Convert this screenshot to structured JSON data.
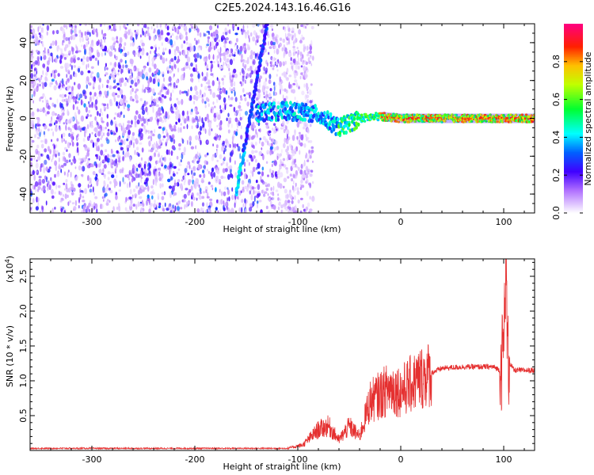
{
  "figure": {
    "title": "C2E5.2024.143.16.46.G16"
  },
  "chart_data": [
    {
      "type": "heatmap",
      "xlabel": "Height of straight line (km)",
      "ylabel": "Frequency (Hz)",
      "xlim": [
        -360,
        130
      ],
      "ylim": [
        -50,
        50
      ],
      "x_ticks": [
        {
          "value": -300,
          "label": "-300"
        },
        {
          "value": -200,
          "label": "-200"
        },
        {
          "value": -100,
          "label": "-100"
        },
        {
          "value": 0,
          "label": "0"
        },
        {
          "value": 100,
          "label": "100"
        }
      ],
      "y_ticks": [
        {
          "value": -40,
          "label": "-40"
        },
        {
          "value": -20,
          "label": "-20"
        },
        {
          "value": 0,
          "label": "0"
        },
        {
          "value": 20,
          "label": "20"
        },
        {
          "value": 40,
          "label": "40"
        }
      ],
      "colorbar": {
        "label": "Normalized spectral amplitude",
        "range": [
          0,
          1
        ],
        "ticks": [
          {
            "value": 0.0,
            "label": "0.0"
          },
          {
            "value": 0.2,
            "label": "0.2"
          },
          {
            "value": 0.4,
            "label": "0.4"
          },
          {
            "value": 0.6,
            "label": "0.6"
          },
          {
            "value": 0.8,
            "label": "0.8"
          }
        ],
        "stops": [
          {
            "value": 0.0,
            "color": "#ffffff"
          },
          {
            "value": 0.12,
            "color": "#b070ff"
          },
          {
            "value": 0.22,
            "color": "#4000ff"
          },
          {
            "value": 0.32,
            "color": "#0060ff"
          },
          {
            "value": 0.42,
            "color": "#00ffff"
          },
          {
            "value": 0.55,
            "color": "#00ff30"
          },
          {
            "value": 0.68,
            "color": "#c0ff00"
          },
          {
            "value": 0.78,
            "color": "#ffc000"
          },
          {
            "value": 0.88,
            "color": "#ff2000"
          },
          {
            "value": 1.0,
            "color": "#ff0080"
          }
        ]
      },
      "features": {
        "noise_region_x": [
          -360,
          -100
        ],
        "linear_ridge": {
          "from": [
            -160,
            -40
          ],
          "to": [
            -130,
            50
          ]
        },
        "carrier_track": [
          {
            "x": -140,
            "y": 3
          },
          {
            "x": -110,
            "y": 4
          },
          {
            "x": -80,
            "y": 2
          },
          {
            "x": -60,
            "y": -5
          },
          {
            "x": -40,
            "y": 0
          },
          {
            "x": -20,
            "y": 1
          },
          {
            "x": 0,
            "y": 0
          },
          {
            "x": 50,
            "y": 0
          },
          {
            "x": 90,
            "y": 0
          },
          {
            "x": 130,
            "y": 0
          }
        ]
      }
    },
    {
      "type": "line",
      "xlabel": "Height of straight line (km)",
      "ylabel": "SNR (10 * v/v)",
      "y_multiplier": "(x10",
      "y_multiplier_exp": "4",
      "y_multiplier_close": ")",
      "xlim": [
        -360,
        130
      ],
      "ylim": [
        0,
        2.75
      ],
      "line_color": "#e53030",
      "x_ticks": [
        {
          "value": -300,
          "label": "-300"
        },
        {
          "value": -200,
          "label": "-200"
        },
        {
          "value": -100,
          "label": "-100"
        },
        {
          "value": 0,
          "label": "0"
        },
        {
          "value": 100,
          "label": "100"
        }
      ],
      "y_ticks": [
        {
          "value": 0.5,
          "label": "0.5"
        },
        {
          "value": 1.0,
          "label": "1.0"
        },
        {
          "value": 1.5,
          "label": "1.5"
        },
        {
          "value": 2.0,
          "label": "2.0"
        },
        {
          "value": 2.5,
          "label": "2.5"
        }
      ],
      "envelope": [
        {
          "x": -360,
          "y": 0.03
        },
        {
          "x": -110,
          "y": 0.03
        },
        {
          "x": -95,
          "y": 0.08
        },
        {
          "x": -80,
          "y": 0.3
        },
        {
          "x": -70,
          "y": 0.35
        },
        {
          "x": -60,
          "y": 0.15
        },
        {
          "x": -50,
          "y": 0.35
        },
        {
          "x": -40,
          "y": 0.2
        },
        {
          "x": -30,
          "y": 0.7
        },
        {
          "x": -20,
          "y": 0.8
        },
        {
          "x": -10,
          "y": 0.9
        },
        {
          "x": 0,
          "y": 0.85
        },
        {
          "x": 10,
          "y": 0.95
        },
        {
          "x": 20,
          "y": 1.05
        },
        {
          "x": 40,
          "y": 1.18
        },
        {
          "x": 60,
          "y": 1.2
        },
        {
          "x": 90,
          "y": 1.2
        },
        {
          "x": 97,
          "y": 1.15
        },
        {
          "x": 100,
          "y": 1.5
        },
        {
          "x": 102,
          "y": 2.7
        },
        {
          "x": 104,
          "y": 1.3
        },
        {
          "x": 110,
          "y": 1.15
        },
        {
          "x": 130,
          "y": 1.15
        }
      ]
    }
  ]
}
